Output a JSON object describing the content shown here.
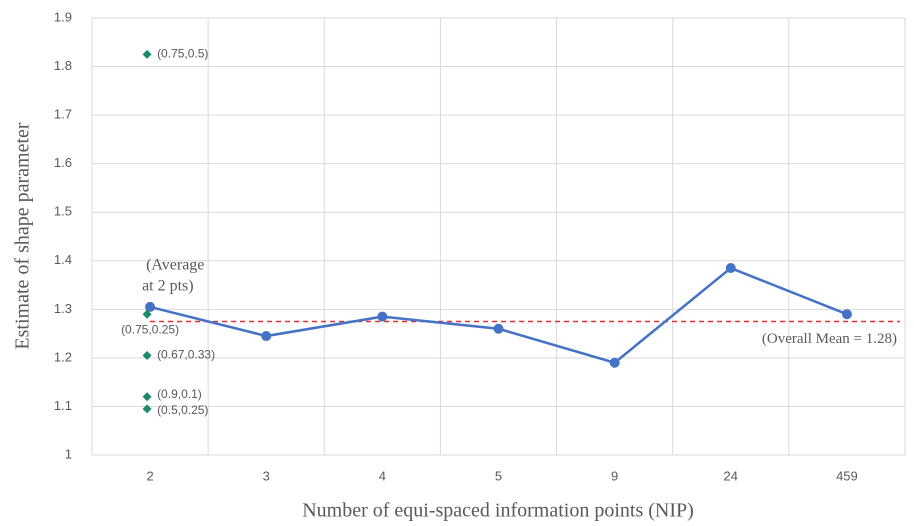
{
  "chart_data": {
    "type": "line",
    "xlabel": "Number of equi-spaced information points (NIP)",
    "ylabel": "Estimate of shape parameter",
    "categories": [
      "2",
      "3",
      "4",
      "5",
      "9",
      "24",
      "459"
    ],
    "values": [
      1.305,
      1.245,
      1.285,
      1.26,
      1.19,
      1.385,
      1.29
    ],
    "color": "#4472c4",
    "points": [
      {
        "label": "(0.75,0.5)",
        "value": 1.825
      },
      {
        "label": "(0.75,0.25)",
        "value": 1.29
      },
      {
        "label": "(0.67,0.33)",
        "value": 1.205
      },
      {
        "label": "(0.9,0.1)",
        "value": 1.12
      },
      {
        "label": "(0.5,0.25)",
        "value": 1.095
      }
    ],
    "points_color": "#1a8a6a",
    "annotation_lines": [
      "(Average",
      "at 2 pts)"
    ],
    "annotation_color": "#2e75b6",
    "mean": {
      "value": 1.275,
      "label": "(Overall Mean = 1.28)",
      "color": "#e03030"
    },
    "ylim": [
      1,
      1.9
    ],
    "yticks": [
      1,
      1.1,
      1.2,
      1.3,
      1.4,
      1.5,
      1.6,
      1.7,
      1.8,
      1.9
    ],
    "grid": true
  }
}
